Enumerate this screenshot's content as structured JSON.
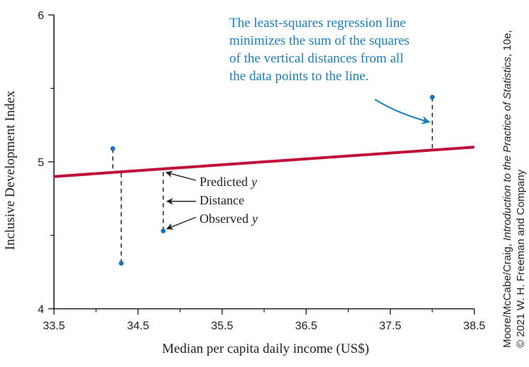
{
  "chart_data": {
    "type": "scatter",
    "xlabel": "Median per capita daily income (US$)",
    "ylabel": "Inclusive Development Index",
    "xlim": [
      33.5,
      38.5
    ],
    "ylim": [
      4,
      6
    ],
    "xticks": [
      33.5,
      34.5,
      35.5,
      36.5,
      37.5,
      38.5
    ],
    "xtick_labels": [
      "33.5",
      "34.5",
      "35.5",
      "36.5",
      "37.5",
      "38.5"
    ],
    "yticks": [
      4,
      5,
      6
    ],
    "ytick_labels": [
      "4",
      "5",
      "6"
    ],
    "points": [
      {
        "x": 34.2,
        "y": 5.09
      },
      {
        "x": 34.3,
        "y": 4.31
      },
      {
        "x": 34.8,
        "y": 4.53
      },
      {
        "x": 38.0,
        "y": 5.44
      }
    ],
    "regression_line": {
      "x": [
        33.5,
        38.5
      ],
      "y": [
        4.9,
        5.1
      ]
    },
    "grid": false,
    "colors": {
      "line": "#c0103a",
      "points": "#1a73c1",
      "callout": "#1a7fc1",
      "axis": "#222222"
    }
  },
  "annotations": {
    "callout_lines": [
      "The least-squares regression line",
      "minimizes the sum of the squares",
      "of the vertical distances from all",
      "the data points to the line."
    ],
    "predicted_label": "Predicted",
    "distance_label": "Distance",
    "observed_label": "Observed",
    "y_symbol": "y"
  },
  "credit": {
    "line1_prefix": "Moore/McCabe/Craig, ",
    "line1_italic": "Introduction to the Practice of Statistics",
    "line1_suffix": ", 10e,",
    "line2": "© 2021 W. H. Freeman and Company"
  }
}
